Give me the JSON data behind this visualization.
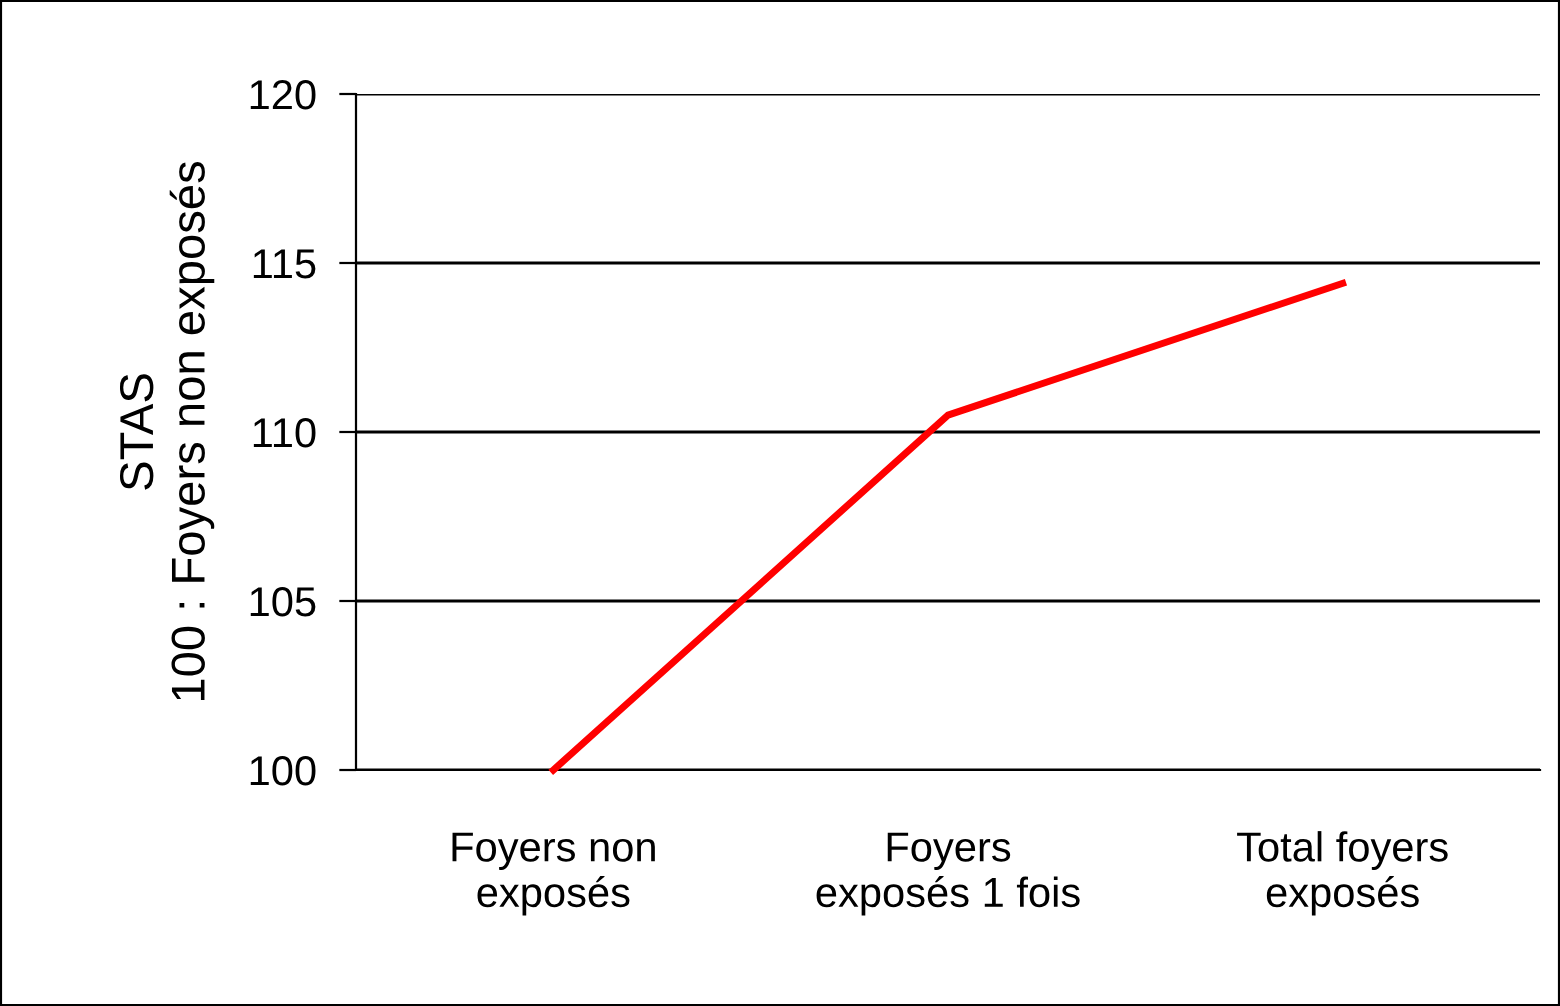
{
  "chart_data": {
    "type": "line",
    "ylabel": "STAS\n100 : Foyers non exposés",
    "categories": [
      "Foyers non\nexposés",
      "Foyers\nexposés 1 fois",
      "Total foyers\nexposés"
    ],
    "series": [
      {
        "color": "#ff0000",
        "values": [
          100,
          110.5,
          114.4
        ]
      }
    ],
    "ylim": [
      100,
      120
    ],
    "yticks": [
      100,
      105,
      110,
      115,
      120
    ],
    "grid": "y",
    "legend": false,
    "marker": "none",
    "line_style": "solid"
  }
}
